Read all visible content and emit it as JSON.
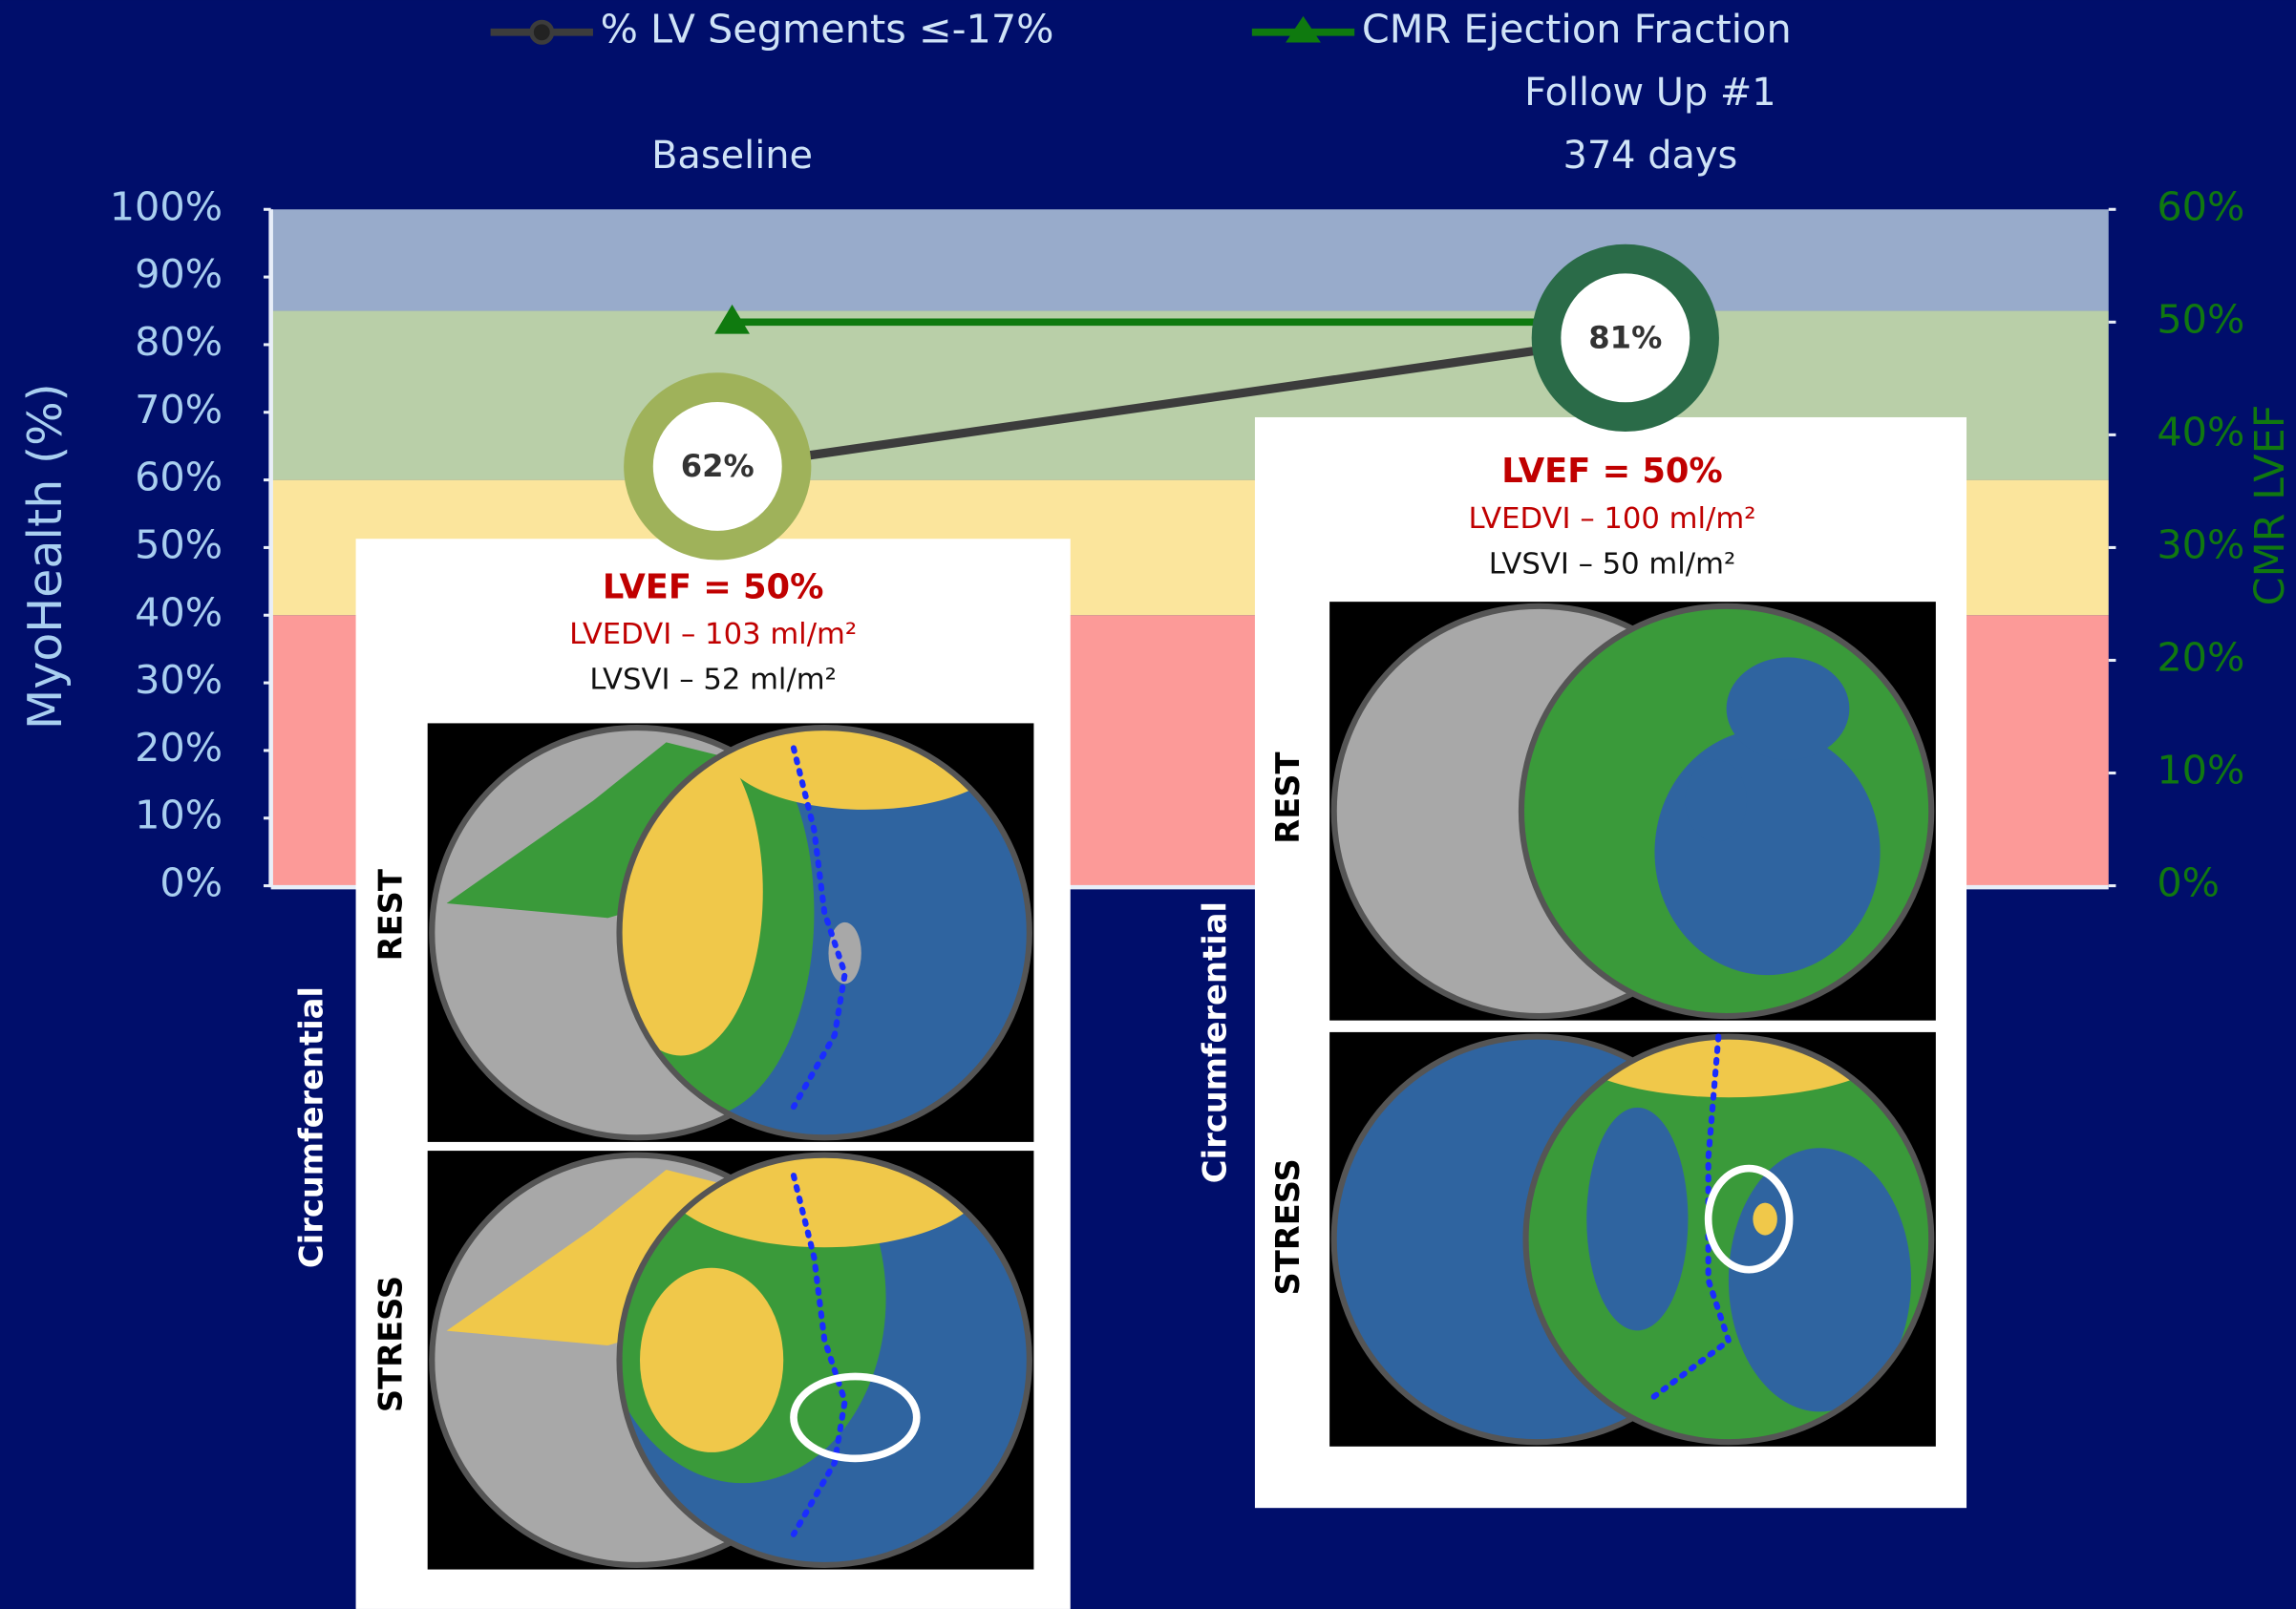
{
  "chart_data": {
    "type": "line",
    "categories": [
      "Baseline",
      "Follow Up #1"
    ],
    "category_notes": [
      null,
      "374 days"
    ],
    "series": [
      {
        "name": "% LV Segments ≤-17%",
        "color": "#3c3c3c",
        "marker": "circle",
        "marker_colors": [
          "#9fb25a",
          "#2a6b48"
        ],
        "values": [
          62,
          81
        ],
        "value_labels": [
          "62%",
          "81%"
        ]
      },
      {
        "name": "CMR Ejection Fraction",
        "color": "#0f7a0f",
        "marker": "triangle",
        "axis": "y2",
        "values": [
          50,
          50
        ]
      }
    ],
    "ylabel": "MyoHealth (%)",
    "y2label": "CMR LVEF",
    "ylim": [
      0,
      100
    ],
    "yticks": [
      {
        "value": 0,
        "label": "0%"
      },
      {
        "value": 10,
        "label": "10%"
      },
      {
        "value": 20,
        "label": "20%"
      },
      {
        "value": 30,
        "label": "30%"
      },
      {
        "value": 40,
        "label": "40%"
      },
      {
        "value": 50,
        "label": "50%"
      },
      {
        "value": 60,
        "label": "60%"
      },
      {
        "value": 70,
        "label": "70%"
      },
      {
        "value": 80,
        "label": "80%"
      },
      {
        "value": 90,
        "label": "90%"
      },
      {
        "value": 100,
        "label": "100%"
      }
    ],
    "y2lim": [
      0,
      60
    ],
    "y2ticks": [
      {
        "value": 0,
        "label": "0%"
      },
      {
        "value": 10,
        "label": "10%"
      },
      {
        "value": 20,
        "label": "20%"
      },
      {
        "value": 30,
        "label": "30%"
      },
      {
        "value": 40,
        "label": "40%"
      },
      {
        "value": 50,
        "label": "50%"
      },
      {
        "value": 60,
        "label": "60%"
      }
    ],
    "bands": [
      {
        "from": 0,
        "to": 40,
        "color": "#fc9a98"
      },
      {
        "from": 40,
        "to": 60,
        "color": "#fbe59c"
      },
      {
        "from": 60,
        "to": 85,
        "color": "#b9cfa8"
      },
      {
        "from": 85,
        "to": 100,
        "color": "#98abcb"
      }
    ],
    "legend": "top",
    "panels": [
      {
        "lvef": "LVEF = 50%",
        "lvedvi": "LVEDVI – 103 ml/m²",
        "lvsvi": "LVSVI – 52 ml/m²",
        "rest": "REST",
        "stress": "STRESS",
        "mode": "Circumferential"
      },
      {
        "lvef": "LVEF = 50%",
        "lvedvi": "LVEDVI – 100 ml/m²",
        "lvsvi": "LVSVI – 50 ml/m²",
        "rest": "REST",
        "stress": "STRESS",
        "mode": "Circumferential"
      }
    ]
  }
}
